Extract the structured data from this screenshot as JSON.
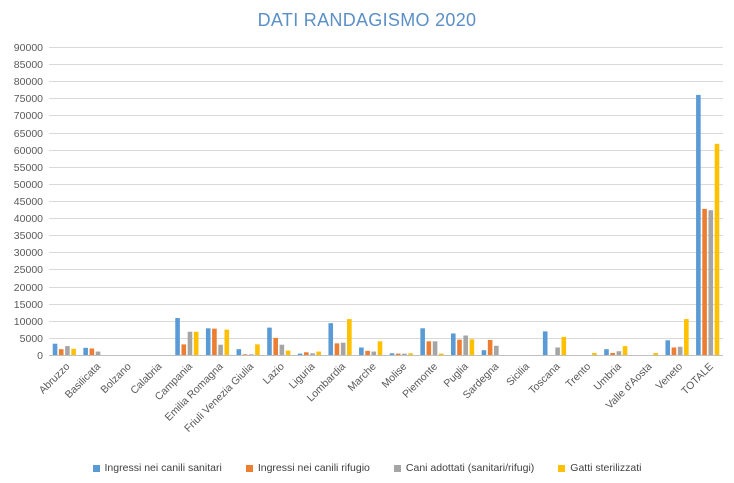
{
  "chart_data": {
    "type": "bar",
    "title": "DATI RANDAGISMO 2020",
    "xlabel": "",
    "ylabel": "",
    "ylim": [
      0,
      90000
    ],
    "ytick_step": 5000,
    "grid": true,
    "legend_position": "bottom",
    "categories": [
      "Abruzzo",
      "Basilicata",
      "Bolzano",
      "Calabria",
      "Campania",
      "Emilia Romagna",
      "Friuli Venezia Giulia",
      "Lazio",
      "Liguria",
      "Lombardia",
      "Marche",
      "Molise",
      "Piemonte",
      "Puglia",
      "Sardegna",
      "Sicilia",
      "Toscana",
      "Trento",
      "Umbria",
      "Valle d'Aosta",
      "Veneto",
      "TOTALE"
    ],
    "series": [
      {
        "name": "Ingressi nei canili sanitari",
        "color": "#5b9bd5",
        "values": [
          3300,
          2100,
          0,
          0,
          10800,
          7800,
          1700,
          8000,
          400,
          9300,
          2200,
          500,
          7800,
          6300,
          1400,
          0,
          6900,
          0,
          1700,
          0,
          4300,
          76000
        ]
      },
      {
        "name": "Ingressi nei canili rifugio",
        "color": "#ed7d31",
        "values": [
          1700,
          1900,
          0,
          0,
          3100,
          7700,
          200,
          5000,
          800,
          3400,
          1200,
          400,
          4000,
          4500,
          4400,
          0,
          0,
          0,
          600,
          0,
          2200,
          42700
        ]
      },
      {
        "name": "Cani adottati (sanitari/rifugi)",
        "color": "#a5a5a5",
        "values": [
          2600,
          1000,
          0,
          0,
          6800,
          3000,
          200,
          3000,
          500,
          3600,
          1000,
          400,
          4000,
          5700,
          2700,
          0,
          2200,
          0,
          1100,
          0,
          2400,
          42300
        ]
      },
      {
        "name": "Gatti sterilizzati",
        "color": "#ffc000",
        "values": [
          1800,
          0,
          0,
          0,
          6800,
          7400,
          3100,
          1300,
          1000,
          10500,
          4000,
          500,
          400,
          4600,
          0,
          0,
          5300,
          600,
          2600,
          600,
          10500,
          61700
        ]
      }
    ]
  }
}
